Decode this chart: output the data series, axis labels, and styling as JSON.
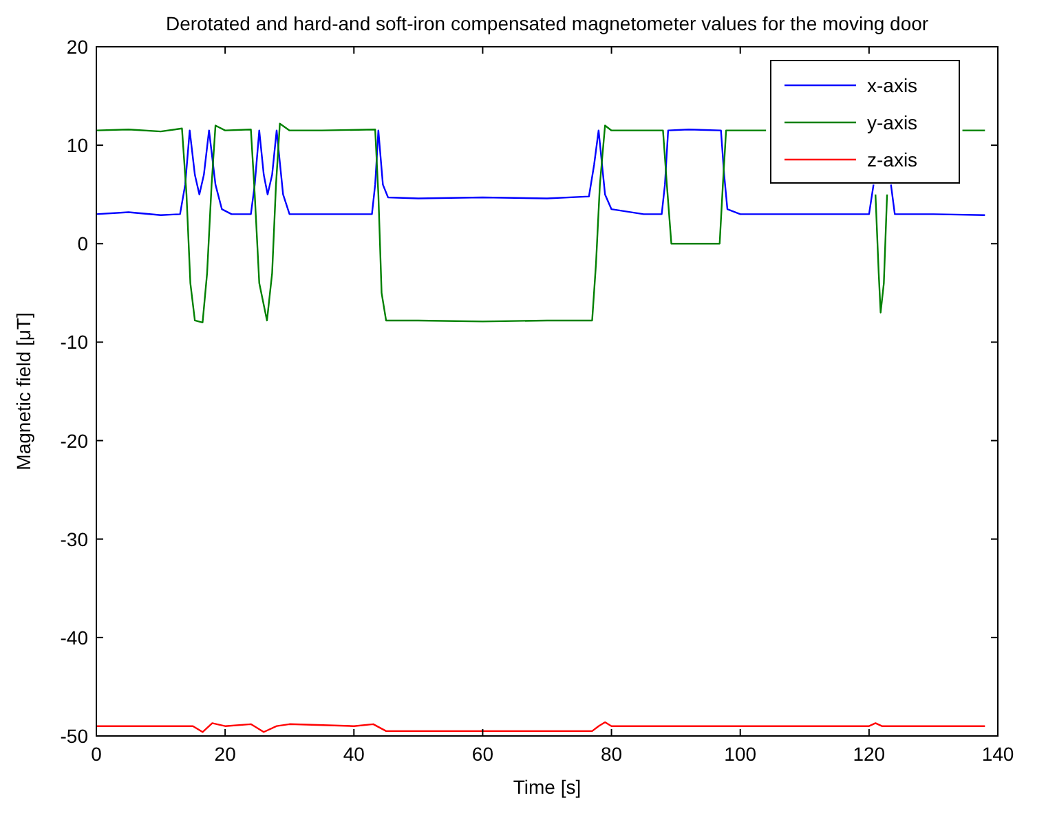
{
  "chart_data": {
    "type": "line",
    "title": "Derotated and hard-and soft-iron compensated magnetometer values for the moving door",
    "xlabel": "Time [s]",
    "ylabel": "Magnetic field [μT]",
    "xlim": [
      0,
      140
    ],
    "ylim": [
      -50,
      20
    ],
    "xticks": [
      0,
      20,
      40,
      60,
      80,
      100,
      120,
      140
    ],
    "yticks": [
      -50,
      -40,
      -30,
      -20,
      -10,
      0,
      10,
      20
    ],
    "legend": "top right",
    "grid": false,
    "series": [
      {
        "name": "x-axis",
        "color": "#0000ff",
        "x": [
          0,
          5,
          10,
          13,
          13.8,
          14.5,
          15.3,
          16,
          16.7,
          17.5,
          18.5,
          19.5,
          21,
          24,
          24.6,
          25.3,
          26,
          26.6,
          27.3,
          28,
          29,
          30,
          35,
          42.8,
          43.3,
          43.8,
          44.5,
          45.3,
          50,
          60,
          70,
          76.5,
          77.3,
          78,
          79,
          80,
          85,
          87.8,
          88.3,
          88.8,
          92,
          97,
          97.5,
          98,
          100,
          110,
          120,
          120.7,
          121.3,
          122,
          122.7,
          123.4,
          124,
          130,
          138
        ],
        "values": [
          3,
          3.2,
          2.9,
          3,
          6,
          11.5,
          7,
          5,
          7,
          11.5,
          6,
          3.5,
          3,
          3,
          6,
          11.5,
          7,
          5,
          7,
          11.5,
          5,
          3,
          3,
          3,
          6,
          11.5,
          6,
          4.7,
          4.6,
          4.7,
          4.6,
          4.8,
          8,
          11.5,
          5,
          3.5,
          3,
          3,
          6,
          11.5,
          11.6,
          11.5,
          7,
          3.5,
          3,
          3,
          3,
          6,
          null,
          null,
          null,
          6,
          3,
          3,
          2.9
        ]
      },
      {
        "name": "y-axis",
        "color": "#008000",
        "x": [
          0,
          5,
          10,
          13.3,
          14,
          14.6,
          15.3,
          16.5,
          17.2,
          17.9,
          18.5,
          20,
          24,
          24.6,
          25.3,
          26.5,
          27.3,
          27.9,
          28.5,
          30,
          35,
          43.3,
          43.8,
          44.3,
          45,
          50,
          60,
          70,
          77,
          77.6,
          78.2,
          79,
          80,
          85,
          88,
          88.6,
          89.3,
          92,
          96.8,
          97.3,
          97.8,
          100,
          104,
          110,
          121,
          121.5,
          121.8,
          122.3,
          122.8,
          125,
          134.5,
          138
        ],
        "values": [
          11.5,
          11.6,
          11.4,
          11.7,
          5,
          -4,
          -7.8,
          -8,
          -3,
          6,
          12,
          11.5,
          11.6,
          5,
          -4,
          -7.8,
          -3,
          6,
          12.2,
          11.5,
          11.5,
          11.6,
          5,
          -5,
          -7.8,
          -7.8,
          -7.9,
          -7.8,
          -7.8,
          -2,
          6,
          12,
          11.5,
          11.5,
          11.5,
          6,
          0,
          0,
          0,
          6,
          11.5,
          11.5,
          11.5,
          null,
          5,
          -3,
          -7,
          -4,
          5,
          null,
          11.5,
          11.5
        ]
      },
      {
        "name": "z-axis",
        "color": "#ff0000",
        "x": [
          0,
          10,
          15,
          16.5,
          18,
          20,
          24,
          26,
          28,
          30,
          40,
          43,
          45,
          50,
          60,
          70,
          77,
          78,
          79,
          80,
          90,
          100,
          110,
          120,
          121,
          122,
          130,
          138
        ],
        "values": [
          -49,
          -49,
          -49,
          -49.6,
          -48.7,
          -49,
          -48.8,
          -49.6,
          -49,
          -48.8,
          -49,
          -48.8,
          -49.5,
          -49.5,
          -49.5,
          -49.5,
          -49.5,
          -49,
          -48.6,
          -49,
          -49,
          -49,
          -49,
          -49,
          -48.7,
          -49,
          -49,
          -49
        ]
      }
    ]
  }
}
